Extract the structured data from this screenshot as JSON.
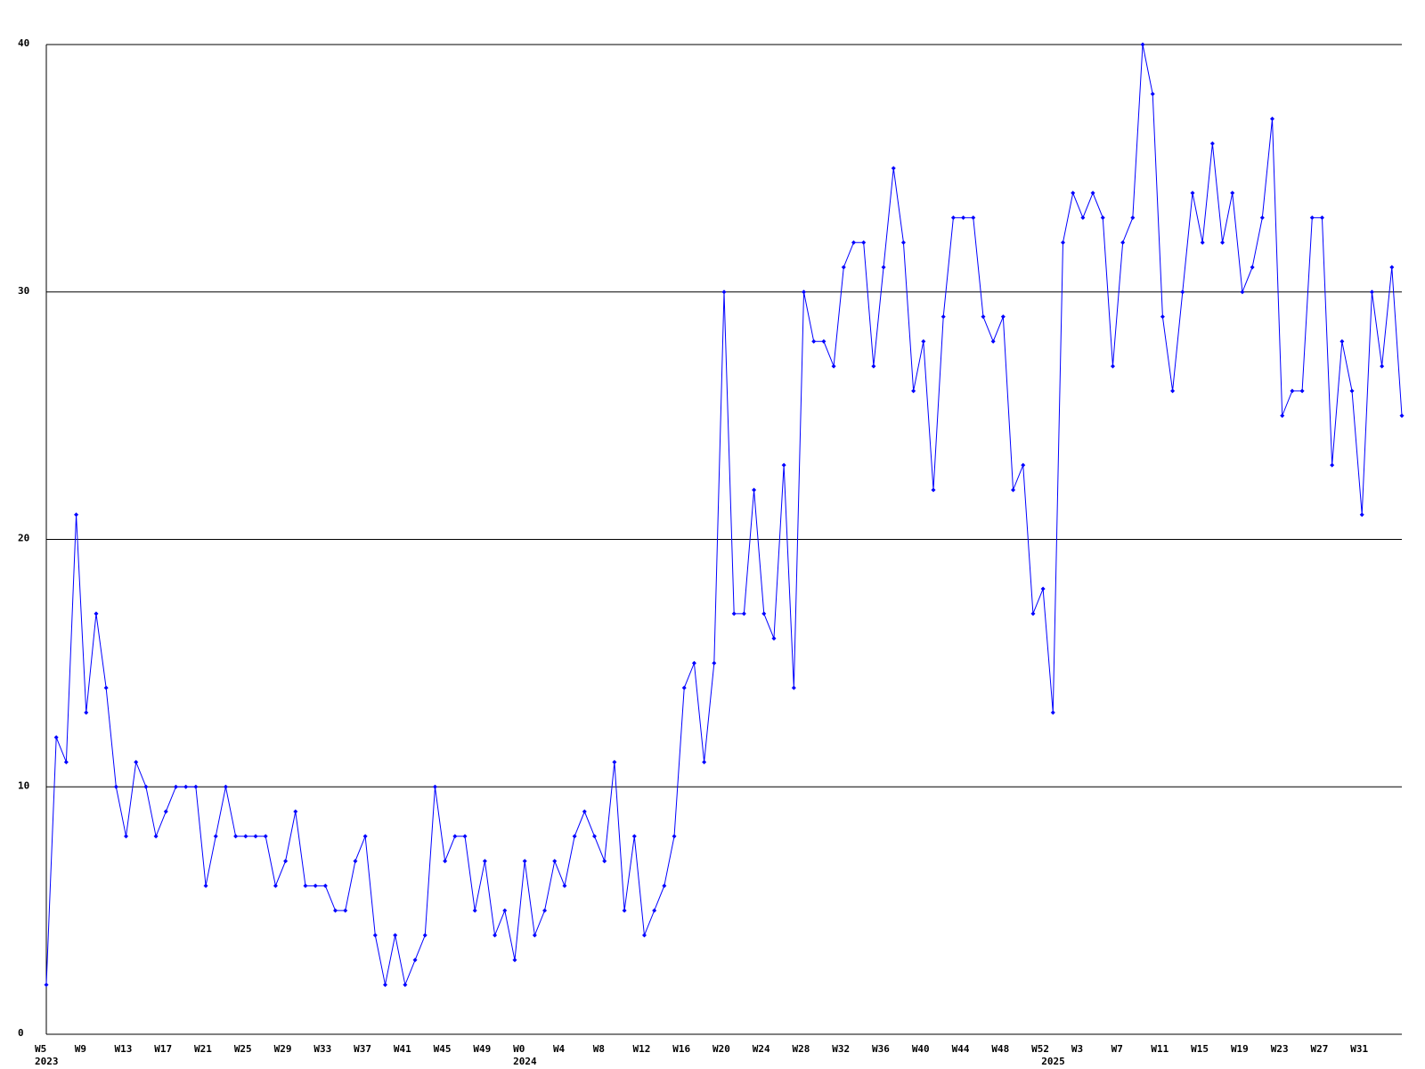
{
  "chart_data": {
    "type": "line",
    "categories": [
      "W5",
      null,
      null,
      null,
      "W9",
      null,
      null,
      null,
      "W13",
      null,
      null,
      null,
      "W17",
      null,
      null,
      null,
      "W21",
      null,
      null,
      null,
      "W25",
      null,
      null,
      null,
      "W29",
      null,
      null,
      null,
      "W33",
      null,
      null,
      null,
      "W37",
      null,
      null,
      null,
      "W41",
      null,
      null,
      null,
      "W45",
      null,
      null,
      null,
      "W49",
      null,
      null,
      null,
      "W0",
      null,
      null,
      null,
      "W4",
      null,
      null,
      null,
      "W8",
      null,
      null,
      null,
      "W12",
      null,
      null,
      null,
      "W16",
      null,
      null,
      null,
      "W20",
      null,
      null,
      null,
      "W24",
      null,
      null,
      null,
      "W28",
      null,
      null,
      null,
      "W32",
      null,
      null,
      null,
      "W36",
      null,
      null,
      null,
      "W40",
      null,
      null,
      null,
      "W44",
      null,
      null,
      null,
      "W48",
      null,
      null,
      null,
      "W52",
      null,
      null,
      null,
      "W3",
      null,
      null,
      null,
      "W7",
      null,
      null,
      null,
      "W11",
      null,
      null,
      null,
      "W15",
      null,
      null,
      null,
      "W19",
      null,
      null,
      null,
      "W23",
      null,
      null,
      null,
      "W27",
      null,
      null,
      null,
      "W31",
      null,
      null,
      null,
      null
    ],
    "years": [
      "2023",
      null,
      null,
      null,
      null,
      null,
      null,
      null,
      null,
      null,
      null,
      null,
      null,
      null,
      null,
      null,
      null,
      null,
      null,
      null,
      null,
      null,
      null,
      null,
      null,
      null,
      null,
      null,
      null,
      null,
      null,
      null,
      null,
      null,
      null,
      null,
      null,
      null,
      null,
      null,
      null,
      null,
      null,
      null,
      null,
      null,
      null,
      null,
      "2024",
      null,
      null,
      null,
      null,
      null,
      null,
      null,
      null,
      null,
      null,
      null,
      null,
      null,
      null,
      null,
      null,
      null,
      null,
      null,
      null,
      null,
      null,
      null,
      null,
      null,
      null,
      null,
      null,
      null,
      null,
      null,
      null,
      null,
      null,
      null,
      null,
      null,
      null,
      null,
      null,
      null,
      null,
      null,
      null,
      null,
      null,
      null,
      null,
      null,
      null,
      null,
      null,
      "2025",
      null,
      null,
      null,
      null,
      null,
      null,
      null,
      null,
      null,
      null,
      null,
      null,
      null,
      null,
      null,
      null,
      null,
      null,
      null,
      null,
      null,
      null,
      null,
      null,
      null,
      null,
      null,
      null,
      null,
      null,
      null,
      null,
      null,
      null,
      null
    ],
    "series": [
      {
        "color": "#0000ff",
        "values": [
          2,
          12,
          11,
          21,
          13,
          17,
          14,
          10,
          8,
          11,
          10,
          8,
          9,
          10,
          10,
          10,
          6,
          8,
          10,
          8,
          8,
          8,
          8,
          6,
          7,
          9,
          6,
          6,
          6,
          5,
          5,
          7,
          8,
          4,
          2,
          4,
          2,
          3,
          4,
          10,
          7,
          8,
          8,
          5,
          7,
          4,
          5,
          3,
          7,
          4,
          5,
          7,
          6,
          8,
          9,
          8,
          7,
          11,
          5,
          8,
          4,
          5,
          6,
          8,
          14,
          15,
          11,
          15,
          30,
          17,
          17,
          22,
          17,
          16,
          23,
          14,
          30,
          28,
          28,
          27,
          31,
          32,
          32,
          27,
          31,
          35,
          32,
          26,
          28,
          22,
          29,
          33,
          33,
          33,
          29,
          28,
          29,
          22,
          23,
          17,
          18,
          13,
          32,
          34,
          33,
          34,
          33,
          27,
          32,
          33,
          40,
          38,
          29,
          26,
          30,
          34,
          32,
          36,
          32,
          34,
          30,
          31,
          33,
          37,
          25,
          26,
          26,
          33,
          33,
          23,
          28,
          26,
          21,
          30,
          27,
          31,
          25
        ]
      }
    ],
    "ylim": [
      0,
      40
    ],
    "yticks": [
      0,
      10,
      20,
      30,
      40
    ],
    "grid": true
  }
}
